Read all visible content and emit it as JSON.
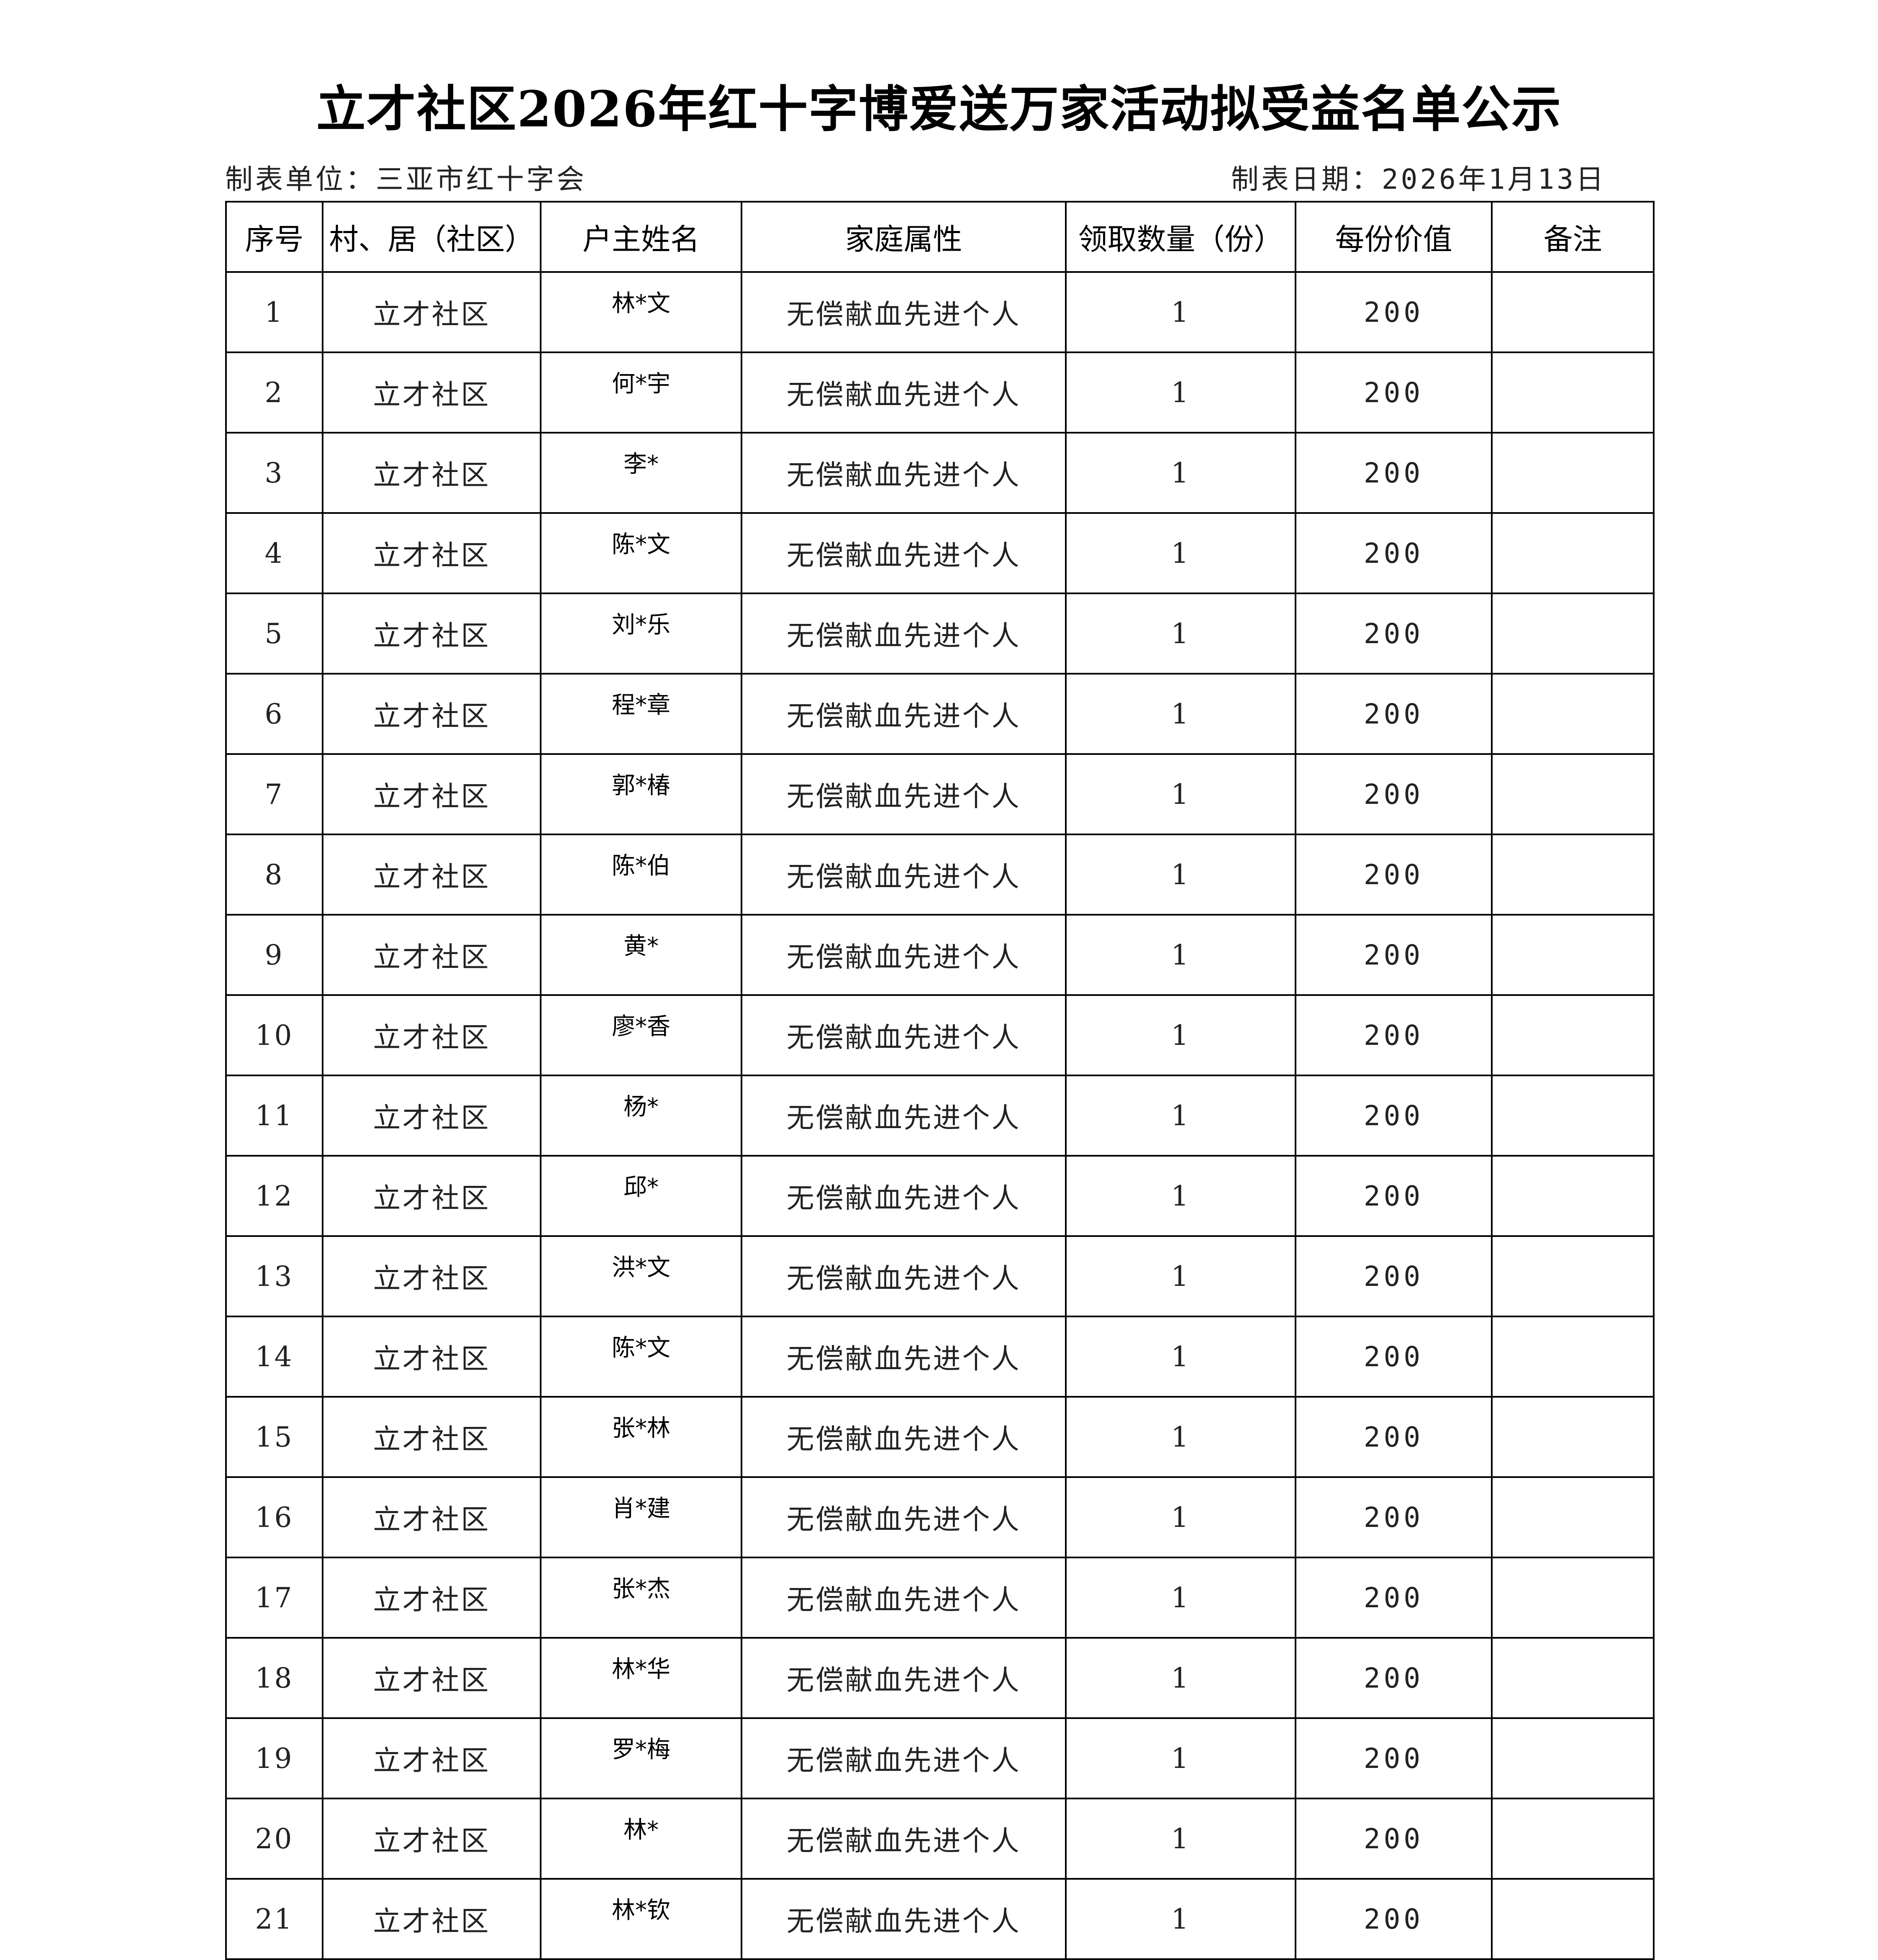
{
  "title": "立才社区2026年红十字博爱送万家活动拟受益名单公示",
  "maker": "制表单位：三亚市红十字会",
  "date": "制表日期：2026年1月13日",
  "headers": [
    "序号",
    "村、居（社区）",
    "户主姓名",
    "家庭属性",
    "领取数量（份）",
    "每份价值",
    "备注"
  ],
  "rows": [
    [
      "1",
      "立才社区",
      "林*文",
      "无偿献血先进个人",
      "1",
      "200",
      ""
    ],
    [
      "2",
      "立才社区",
      "何*宇",
      "无偿献血先进个人",
      "1",
      "200",
      ""
    ],
    [
      "3",
      "立才社区",
      "李*",
      "无偿献血先进个人",
      "1",
      "200",
      ""
    ],
    [
      "4",
      "立才社区",
      "陈*文",
      "无偿献血先进个人",
      "1",
      "200",
      ""
    ],
    [
      "5",
      "立才社区",
      "刘*乐",
      "无偿献血先进个人",
      "1",
      "200",
      ""
    ],
    [
      "6",
      "立才社区",
      "程*章",
      "无偿献血先进个人",
      "1",
      "200",
      ""
    ],
    [
      "7",
      "立才社区",
      "郭*椿",
      "无偿献血先进个人",
      "1",
      "200",
      ""
    ],
    [
      "8",
      "立才社区",
      "陈*伯",
      "无偿献血先进个人",
      "1",
      "200",
      ""
    ],
    [
      "9",
      "立才社区",
      "黄*",
      "无偿献血先进个人",
      "1",
      "200",
      ""
    ],
    [
      "10",
      "立才社区",
      "廖*香",
      "无偿献血先进个人",
      "1",
      "200",
      ""
    ],
    [
      "11",
      "立才社区",
      "杨*",
      "无偿献血先进个人",
      "1",
      "200",
      ""
    ],
    [
      "12",
      "立才社区",
      "邱*",
      "无偿献血先进个人",
      "1",
      "200",
      ""
    ],
    [
      "13",
      "立才社区",
      "洪*文",
      "无偿献血先进个人",
      "1",
      "200",
      ""
    ],
    [
      "14",
      "立才社区",
      "陈*文",
      "无偿献血先进个人",
      "1",
      "200",
      ""
    ],
    [
      "15",
      "立才社区",
      "张*林",
      "无偿献血先进个人",
      "1",
      "200",
      ""
    ],
    [
      "16",
      "立才社区",
      "肖*建",
      "无偿献血先进个人",
      "1",
      "200",
      ""
    ],
    [
      "17",
      "立才社区",
      "张*杰",
      "无偿献血先进个人",
      "1",
      "200",
      ""
    ],
    [
      "18",
      "立才社区",
      "林*华",
      "无偿献血先进个人",
      "1",
      "200",
      ""
    ],
    [
      "19",
      "立才社区",
      "罗*梅",
      "无偿献血先进个人",
      "1",
      "200",
      ""
    ],
    [
      "20",
      "立才社区",
      "林*",
      "无偿献血先进个人",
      "1",
      "200",
      ""
    ],
    [
      "21",
      "立才社区",
      "林*钦",
      "无偿献血先进个人",
      "1",
      "200",
      ""
    ]
  ]
}
